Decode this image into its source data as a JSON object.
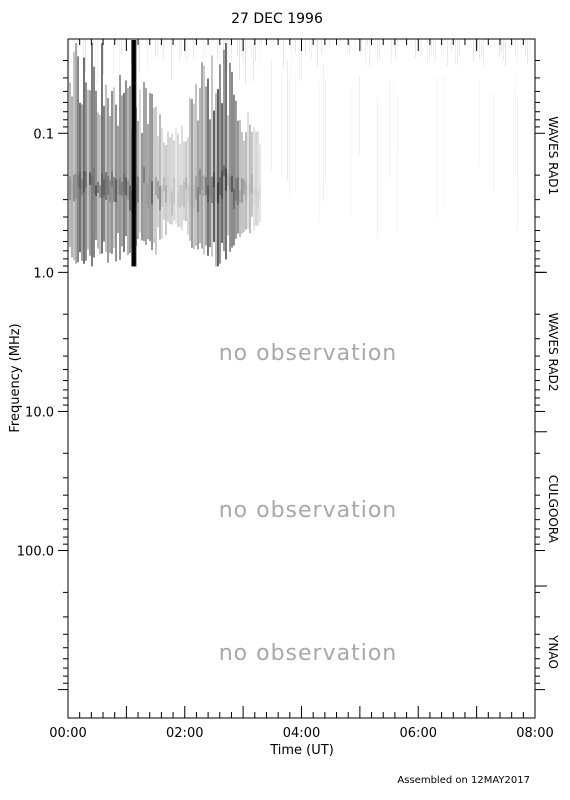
{
  "chart_data": {
    "type": "heatmap",
    "title": "27 DEC 1996",
    "xlabel": "Time (UT)",
    "ylabel": "Frequency (MHz)",
    "x_tick_labels": [
      "00:00",
      "02:00",
      "04:00",
      "06:00",
      "08:00"
    ],
    "x_range_hours": [
      0,
      8
    ],
    "y_scale": "log",
    "y_tick_labels": [
      "0.1",
      "1.0",
      "10.0",
      "100.0"
    ],
    "y_tick_values": [
      0.1,
      1.0,
      10.0,
      100.0
    ],
    "y_range_mhz": [
      0.021,
      1600
    ],
    "instrument_bands": [
      {
        "label": "WAVES RAD1",
        "fmin": 0.021,
        "fmax": 1.0
      },
      {
        "label": "WAVES RAD2",
        "fmin": 1.0,
        "fmax": 14.0
      },
      {
        "label": "CULGOORA",
        "fmin": 14.0,
        "fmax": 180.0
      },
      {
        "label": "YNAO",
        "fmin": 180.0,
        "fmax": 1600.0
      }
    ],
    "no_observation_text": "no observation",
    "no_observation_bands": [
      "WAVES RAD2",
      "CULGOORA",
      "YNAO"
    ],
    "burst_hours": 1.12,
    "footer": "Assembled on 12MAY2017"
  }
}
